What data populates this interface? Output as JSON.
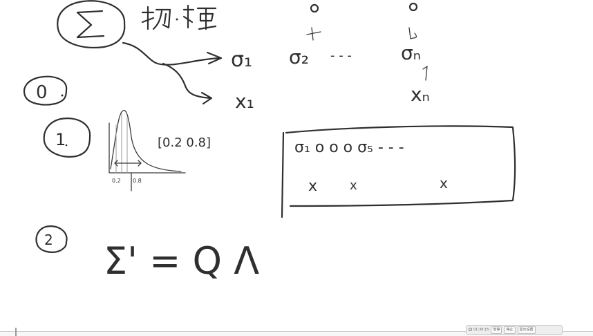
{
  "board": {
    "heading": {
      "symbol": "Σ"
    },
    "top_row": {
      "sigma_1": "σ₁",
      "sigma_2": "σ₂",
      "dots": "- - -",
      "sigma_n": "σₙ"
    },
    "x_row": {
      "x_1": "x₁",
      "x_n": "xₙ"
    },
    "step_0": {
      "number": "0"
    },
    "step_1": {
      "number": "1",
      "interval_label": "[0.2  0.8]",
      "axis_tick_left": "0.2",
      "axis_tick_right": "0.8"
    },
    "box": {
      "row1": "σ₁  o  o  o σ₅ - - -",
      "row2_marks": [
        "x",
        "x",
        "x"
      ]
    },
    "step_2": {
      "number": "2",
      "equation": "Σ' = Q Λ"
    }
  },
  "controls": {
    "clock": "01:30:15",
    "buttons": [
      "暂停",
      "停止",
      "显示设置"
    ]
  },
  "colors": {
    "ink": "#2f2f2f",
    "background": "#ffffff"
  }
}
